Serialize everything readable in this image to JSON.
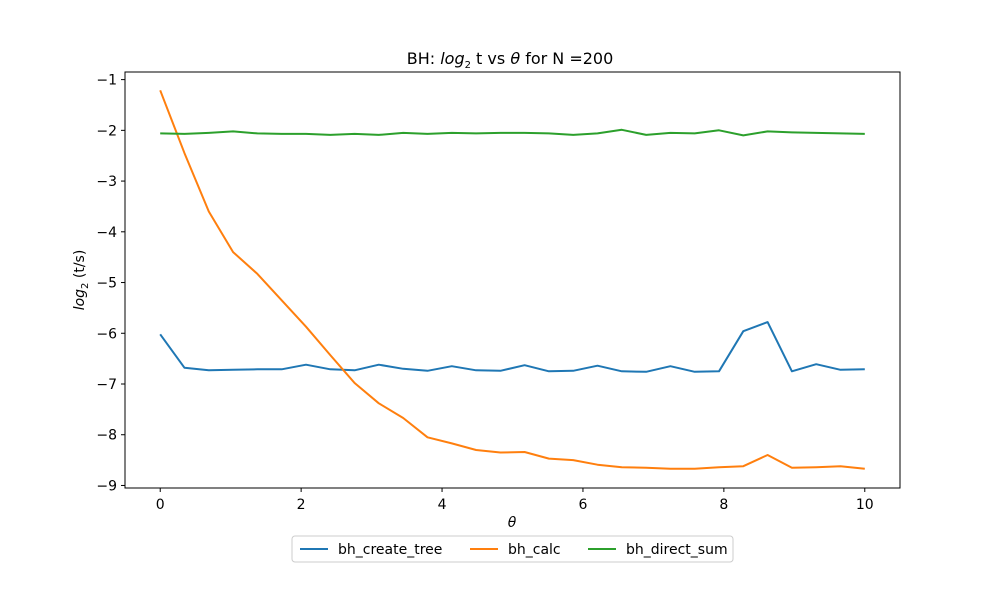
{
  "chart_data": {
    "type": "line",
    "title": {
      "prefix": "BH: ",
      "log": "log",
      "sub": "2",
      "middle": " t vs ",
      "theta": "θ",
      "suffix": " for N =200"
    },
    "xlabel": "θ",
    "ylabel": {
      "log": "log",
      "sub": "2",
      "rest": " (t/s)"
    },
    "xlim": [
      -0.5,
      10.5
    ],
    "ylim": [
      -9.05,
      -0.85
    ],
    "xticks": [
      0,
      2,
      4,
      6,
      8,
      10
    ],
    "xtick_labels": [
      "0",
      "2",
      "4",
      "6",
      "8",
      "10"
    ],
    "yticks": [
      -1,
      -2,
      -3,
      -4,
      -5,
      -6,
      -7,
      -8,
      -9
    ],
    "ytick_labels": [
      "−1",
      "−2",
      "−3",
      "−4",
      "−5",
      "−6",
      "−7",
      "−8",
      "−9"
    ],
    "grid": false,
    "legend_position": "bottom-center",
    "x": [
      0,
      0.345,
      0.69,
      1.034,
      1.379,
      1.724,
      2.069,
      2.414,
      2.759,
      3.103,
      3.448,
      3.793,
      4.138,
      4.483,
      4.828,
      5.172,
      5.517,
      5.862,
      6.207,
      6.552,
      6.897,
      7.241,
      7.586,
      7.931,
      8.276,
      8.621,
      8.966,
      9.31,
      9.655,
      10
    ],
    "series": [
      {
        "name": "bh_create_tree",
        "color": "#1f77b4",
        "values": [
          -6.02,
          -6.68,
          -6.73,
          -6.72,
          -6.71,
          -6.71,
          -6.62,
          -6.71,
          -6.73,
          -6.62,
          -6.7,
          -6.74,
          -6.65,
          -6.73,
          -6.74,
          -6.63,
          -6.75,
          -6.74,
          -6.64,
          -6.75,
          -6.76,
          -6.65,
          -6.76,
          -6.75,
          -5.96,
          -5.78,
          -6.75,
          -6.61,
          -6.72,
          -6.71
        ]
      },
      {
        "name": "bh_calc",
        "color": "#ff7f0e",
        "values": [
          -1.21,
          -2.45,
          -3.6,
          -4.4,
          -4.83,
          -5.35,
          -5.87,
          -6.43,
          -6.98,
          -7.38,
          -7.67,
          -8.05,
          -8.17,
          -8.3,
          -8.35,
          -8.34,
          -8.47,
          -8.5,
          -8.59,
          -8.64,
          -8.65,
          -8.67,
          -8.67,
          -8.64,
          -8.62,
          -8.4,
          -8.65,
          -8.64,
          -8.62,
          -8.67
        ]
      },
      {
        "name": "bh_direct_sum",
        "color": "#2ca02c",
        "values": [
          -2.06,
          -2.07,
          -2.05,
          -2.02,
          -2.06,
          -2.07,
          -2.07,
          -2.09,
          -2.07,
          -2.09,
          -2.05,
          -2.07,
          -2.05,
          -2.06,
          -2.05,
          -2.05,
          -2.06,
          -2.09,
          -2.06,
          -1.99,
          -2.09,
          -2.05,
          -2.06,
          -2.0,
          -2.1,
          -2.02,
          -2.04,
          -2.05,
          -2.06,
          -2.07
        ]
      }
    ]
  }
}
